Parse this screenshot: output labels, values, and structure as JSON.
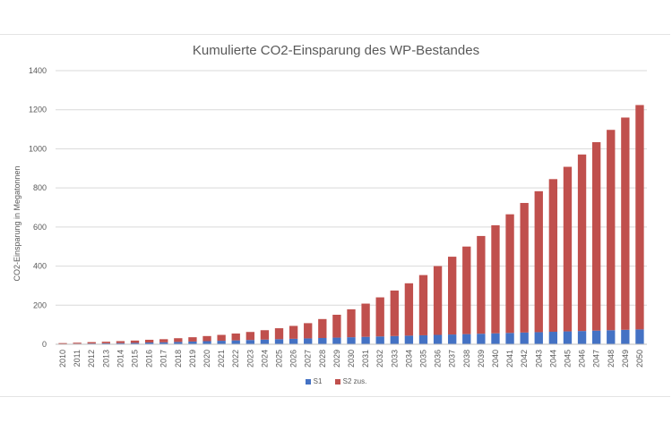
{
  "chart_data": {
    "type": "bar",
    "title": "Kumulierte CO2-Einsparung des WP-Bestandes",
    "xlabel": "",
    "ylabel": "CO2-Einsparung in Megatonnen",
    "ylim": [
      0,
      1400
    ],
    "yticks": [
      0,
      200,
      400,
      600,
      800,
      1000,
      1200,
      1400
    ],
    "grid": true,
    "legend_position": "bottom",
    "categories": [
      "2010",
      "2011",
      "2012",
      "2013",
      "2014",
      "2015",
      "2016",
      "2017",
      "2018",
      "2019",
      "2020",
      "2021",
      "2022",
      "2023",
      "2024",
      "2025",
      "2026",
      "2027",
      "2028",
      "2029",
      "2030",
      "2031",
      "2032",
      "2033",
      "2034",
      "2035",
      "2036",
      "2037",
      "2038",
      "2039",
      "2040",
      "2041",
      "2042",
      "2043",
      "2044",
      "2045",
      "2046",
      "2047",
      "2048",
      "2049",
      "2050"
    ],
    "series": [
      {
        "name": "S1",
        "color": "#4472C4",
        "values": [
          2,
          3,
          4,
          5,
          6,
          7,
          9,
          10,
          12,
          14,
          16,
          18,
          20,
          22,
          24,
          26,
          28,
          30,
          32,
          34,
          36,
          38,
          40,
          42,
          44,
          46,
          48,
          50,
          52,
          54,
          56,
          58,
          60,
          62,
          64,
          66,
          68,
          70,
          72,
          74,
          76
        ]
      },
      {
        "name": "S2 zus.",
        "color": "#C0504D",
        "values": [
          4,
          5,
          7,
          8,
          10,
          12,
          14,
          16,
          19,
          22,
          26,
          30,
          35,
          41,
          48,
          56,
          66,
          78,
          97,
          117,
          143,
          170,
          200,
          233,
          268,
          308,
          352,
          398,
          448,
          500,
          553,
          607,
          663,
          721,
          781,
          842,
          903,
          964,
          1025,
          1086,
          1148
        ]
      }
    ]
  }
}
